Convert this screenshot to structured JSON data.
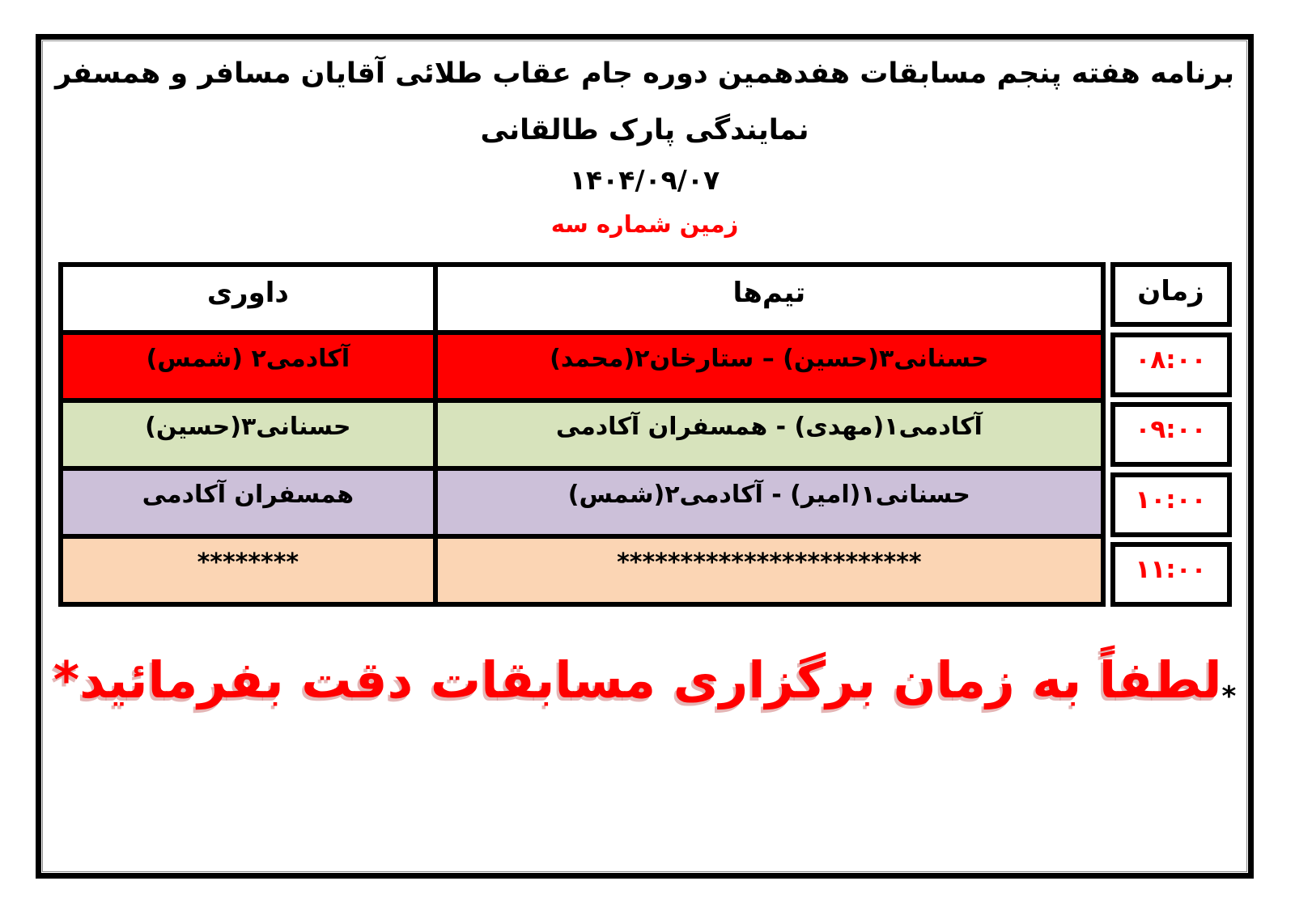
{
  "header": {
    "title_line1": "برنامه هفته پنجم مسابقات هفدهمین دوره جام عقاب طلائی آقایان مسافر و همسفر",
    "title_line2": "نمایندگی پارک طالقانی",
    "date": "۱۴۰۴/۰۹/۰۷",
    "field_label": "زمین شماره سه"
  },
  "table": {
    "columns": {
      "time": "زمان",
      "teams": "تیم‌ها",
      "referee": "داوری"
    },
    "rows": [
      {
        "time": "۰۸:۰۰",
        "teams": "حسنانی۳(حسین) – ستارخان۲(محمد)",
        "referee": "آکادمی۲ (شمس)",
        "color": "#ff0000"
      },
      {
        "time": "۰۹:۰۰",
        "teams": "آکادمی۱(مهدی) - همسفران آکادمی",
        "referee": "حسنانی۳(حسین)",
        "color": "#d7e3bc"
      },
      {
        "time": "۱۰:۰۰",
        "teams": "حسنانی۱(امیر) - آکادمی۲(شمس)",
        "referee": "همسفران آکادمی",
        "color": "#ccc0d9"
      },
      {
        "time": "۱۱:۰۰",
        "teams": "************************",
        "referee": "********",
        "color": "#fbd5b4"
      }
    ]
  },
  "footer": {
    "lead_star": "*",
    "note": "لطفاً به زمان برگزاری مسابقات دقت بفرمائید",
    "trail_star": "*"
  },
  "colors": {
    "accent_red": "#ff0000",
    "border_black": "#000000",
    "row_red": "#ff0000",
    "row_green": "#d7e3bc",
    "row_lavender": "#ccc0d9",
    "row_peach": "#fbd5b4"
  }
}
